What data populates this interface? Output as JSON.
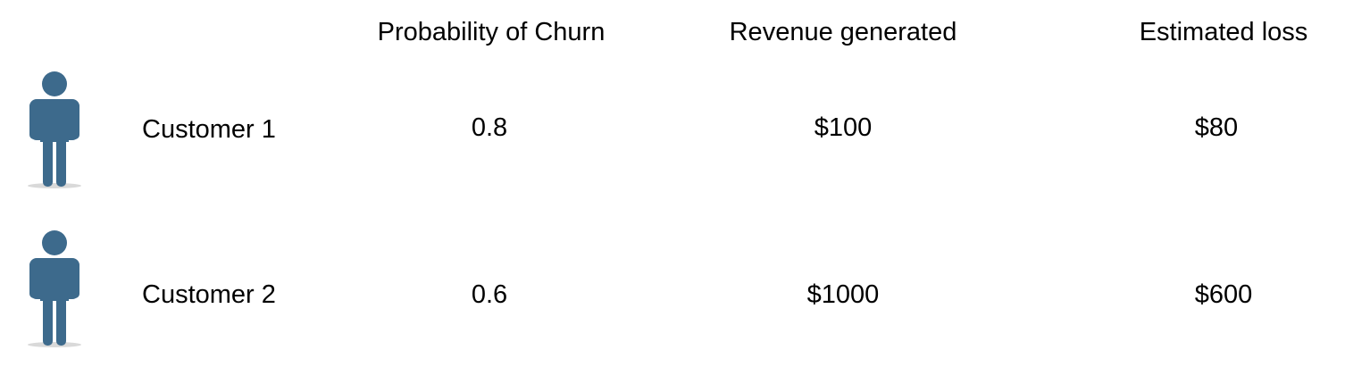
{
  "table": {
    "headers": {
      "probability": "Probability of Churn",
      "revenue": "Revenue generated",
      "loss": "Estimated loss"
    },
    "rows": [
      {
        "icon": "person-icon",
        "customer": "Customer 1",
        "probability": "0.8",
        "revenue": "$100",
        "loss": "$80"
      },
      {
        "icon": "person-icon",
        "customer": "Customer 2",
        "probability": "0.6",
        "revenue": "$1000",
        "loss": "$600"
      }
    ]
  },
  "colors": {
    "icon": "#3d6a8c"
  }
}
